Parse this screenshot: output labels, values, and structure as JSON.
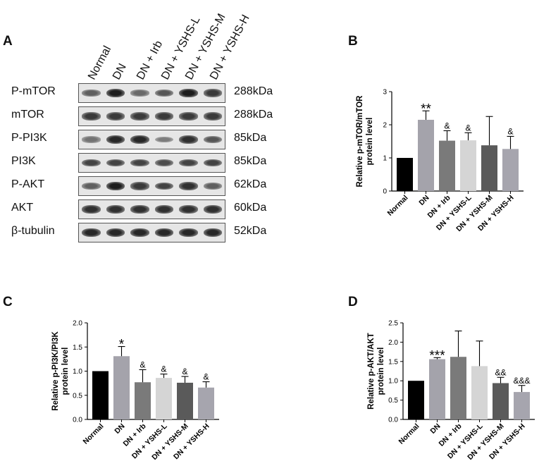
{
  "panel_a": {
    "letter": "A",
    "lanes": [
      "Normal",
      "DN",
      "DN + Irb",
      "DN + YSHS-L",
      "DN + YSHS-M",
      "DN + YSHS-H"
    ],
    "rows": [
      {
        "name": "P-mTOR",
        "kda": "288kDa",
        "intensity": [
          0.55,
          0.9,
          0.5,
          0.6,
          0.9,
          0.75
        ]
      },
      {
        "name": "mTOR",
        "kda": "288kDa",
        "intensity": [
          0.75,
          0.75,
          0.75,
          0.75,
          0.75,
          0.75
        ]
      },
      {
        "name": "P-PI3K",
        "kda": "85kDa",
        "intensity": [
          0.45,
          0.85,
          0.85,
          0.4,
          0.8,
          0.6
        ]
      },
      {
        "name": "PI3K",
        "kda": "85kDa",
        "intensity": [
          0.7,
          0.7,
          0.7,
          0.65,
          0.7,
          0.7
        ]
      },
      {
        "name": "P-AKT",
        "kda": "62kDa",
        "intensity": [
          0.55,
          0.9,
          0.75,
          0.7,
          0.8,
          0.55
        ]
      },
      {
        "name": "AKT",
        "kda": "60kDa",
        "intensity": [
          0.8,
          0.8,
          0.8,
          0.8,
          0.8,
          0.8
        ]
      },
      {
        "name": "β-tubulin",
        "kda": "52kDa",
        "intensity": [
          0.85,
          0.85,
          0.85,
          0.85,
          0.85,
          0.85
        ]
      }
    ]
  },
  "chart_data": [
    {
      "letter": "B",
      "type": "bar",
      "categories": [
        "Normal",
        "DN",
        "DN + Irb",
        "DN + YSHS-L",
        "DN + YSHS-M",
        "DN + YSHS-H"
      ],
      "values": [
        1.0,
        2.15,
        1.52,
        1.53,
        1.38,
        1.27
      ],
      "errors": [
        0,
        0.27,
        0.3,
        0.23,
        0.87,
        0.38
      ],
      "annotations": [
        "",
        "**",
        "&",
        "&",
        "",
        "&"
      ],
      "ylabel_lines": [
        "Relative p-mTOR/mTOR",
        "protein level"
      ],
      "ylim": [
        0,
        3
      ],
      "yticks": [
        "0",
        "1",
        "2",
        "3"
      ],
      "colors": [
        "#000000",
        "#a4a3ab",
        "#7a7a7a",
        "#d5d5d5",
        "#5a5a5a",
        "#a6a5ae"
      ]
    },
    {
      "letter": "C",
      "type": "bar",
      "categories": [
        "Normal",
        "DN",
        "DN + Irb",
        "DN + YSHS-L",
        "DN + YSHS-M",
        "DN + YSHS-H"
      ],
      "values": [
        1.0,
        1.31,
        0.77,
        0.86,
        0.76,
        0.66
      ],
      "errors": [
        0,
        0.2,
        0.26,
        0.08,
        0.13,
        0.12
      ],
      "annotations": [
        "",
        "*",
        "&",
        "&",
        "&",
        "&"
      ],
      "ylabel_lines": [
        "Relative p-PI3K/PI3K",
        "protein level"
      ],
      "ylim": [
        0,
        2
      ],
      "yticks": [
        "0.0",
        "0.5",
        "1.0",
        "1.5",
        "2.0"
      ],
      "colors": [
        "#000000",
        "#a4a3ab",
        "#7a7a7a",
        "#d5d5d5",
        "#5a5a5a",
        "#a6a5ae"
      ]
    },
    {
      "letter": "D",
      "type": "bar",
      "categories": [
        "Normal",
        "DN",
        "DN + Irb",
        "DN + YSHS-L",
        "DN + YSHS-M",
        "DN + YSHS-H"
      ],
      "values": [
        1.0,
        1.56,
        1.62,
        1.38,
        0.94,
        0.71
      ],
      "errors": [
        0,
        0.04,
        0.67,
        0.65,
        0.15,
        0.17
      ],
      "annotations": [
        "",
        "***",
        "",
        "",
        "&&",
        "&&&"
      ],
      "ylabel_lines": [
        "Relative p-AKT/AKT",
        "protein level"
      ],
      "ylim": [
        0,
        2.5
      ],
      "yticks": [
        "0.0",
        "0.5",
        "1.0",
        "1.5",
        "2.0",
        "2.5"
      ],
      "colors": [
        "#000000",
        "#a4a3ab",
        "#7a7a7a",
        "#d5d5d5",
        "#5a5a5a",
        "#a6a5ae"
      ]
    }
  ]
}
